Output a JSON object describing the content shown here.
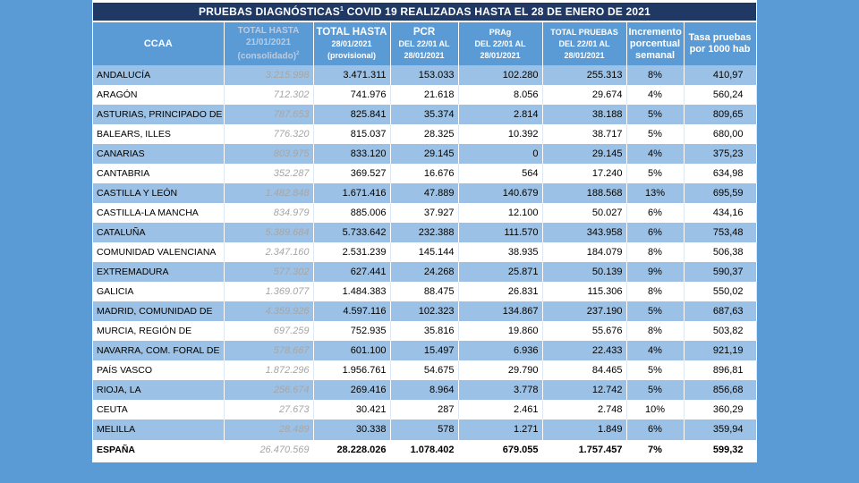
{
  "title": {
    "text_before": "PRUEBAS DIAGNÓSTICAS",
    "sup": "1",
    "text_after": " COVID 19 REALIZADAS HASTA EL 28 DE ENERO DE 2021"
  },
  "columns": {
    "ccaa": "CCAA",
    "consolidado": {
      "line1": "TOTAL HASTA",
      "line2": "21/01/2021",
      "line3": "(consolidado)",
      "sup": "2"
    },
    "total": {
      "line1": "TOTAL HASTA",
      "line2": "28/01/2021",
      "line3": "(provisional)"
    },
    "pcr": {
      "line1": "PCR",
      "line2": "DEL 22/01 AL",
      "line3": "28/01/2021"
    },
    "prag": {
      "line1": "PRAg",
      "line2": "DEL 22/01 AL",
      "line3": "28/01/2021"
    },
    "total_pruebas": {
      "line1": "TOTAL PRUEBAS",
      "line2": "DEL 22/01 AL",
      "line3": "28/01/2021"
    },
    "incremento": {
      "line1": "Incremento",
      "line2": "porcentual",
      "line3": "semanal"
    },
    "tasa": {
      "line1": "Tasa pruebas",
      "line2": "por 1000 hab"
    }
  },
  "rows": [
    [
      "ANDALUCÍA",
      "3.215.998",
      "3.471.311",
      "153.033",
      "102.280",
      "255.313",
      "8%",
      "410,97"
    ],
    [
      "ARAGÓN",
      "712.302",
      "741.976",
      "21.618",
      "8.056",
      "29.674",
      "4%",
      "560,24"
    ],
    [
      "ASTURIAS, PRINCIPADO DE",
      "787.653",
      "825.841",
      "35.374",
      "2.814",
      "38.188",
      "5%",
      "809,65"
    ],
    [
      "BALEARS, ILLES",
      "776.320",
      "815.037",
      "28.325",
      "10.392",
      "38.717",
      "5%",
      "680,00"
    ],
    [
      "CANARIAS",
      "803.975",
      "833.120",
      "29.145",
      "0",
      "29.145",
      "4%",
      "375,23"
    ],
    [
      "CANTABRIA",
      "352.287",
      "369.527",
      "16.676",
      "564",
      "17.240",
      "5%",
      "634,98"
    ],
    [
      "CASTILLA Y LEÓN",
      "1.482.848",
      "1.671.416",
      "47.889",
      "140.679",
      "188.568",
      "13%",
      "695,59"
    ],
    [
      "CASTILLA-LA MANCHA",
      "834.979",
      "885.006",
      "37.927",
      "12.100",
      "50.027",
      "6%",
      "434,16"
    ],
    [
      "CATALUÑA",
      "5.389.684",
      "5.733.642",
      "232.388",
      "111.570",
      "343.958",
      "6%",
      "753,48"
    ],
    [
      "COMUNIDAD VALENCIANA",
      "2.347.160",
      "2.531.239",
      "145.144",
      "38.935",
      "184.079",
      "8%",
      "506,38"
    ],
    [
      "EXTREMADURA",
      "577.302",
      "627.441",
      "24.268",
      "25.871",
      "50.139",
      "9%",
      "590,37"
    ],
    [
      "GALICIA",
      "1.369.077",
      "1.484.383",
      "88.475",
      "26.831",
      "115.306",
      "8%",
      "550,02"
    ],
    [
      "MADRID, COMUNIDAD DE",
      "4.359.926",
      "4.597.116",
      "102.323",
      "134.867",
      "237.190",
      "5%",
      "687,63"
    ],
    [
      "MURCIA, REGIÓN DE",
      "697.259",
      "752.935",
      "35.816",
      "19.860",
      "55.676",
      "8%",
      "503,82"
    ],
    [
      "NAVARRA, COM. FORAL DE",
      "578.667",
      "601.100",
      "15.497",
      "6.936",
      "22.433",
      "4%",
      "921,19"
    ],
    [
      "PAÍS VASCO",
      "1.872.296",
      "1.956.761",
      "54.675",
      "29.790",
      "84.465",
      "5%",
      "896,81"
    ],
    [
      "RIOJA, LA",
      "256.674",
      "269.416",
      "8.964",
      "3.778",
      "12.742",
      "5%",
      "856,68"
    ],
    [
      "CEUTA",
      "27.673",
      "30.421",
      "287",
      "2.461",
      "2.748",
      "10%",
      "360,29"
    ],
    [
      "MELILLA",
      "28.489",
      "30.338",
      "578",
      "1.271",
      "1.849",
      "6%",
      "359,94"
    ]
  ],
  "total_row": [
    "ESPAÑA",
    "26.470.569",
    "28.228.026",
    "1.078.402",
    "679.055",
    "1.757.457",
    "7%",
    "599,32"
  ],
  "colors": {
    "background": "#5b9bd5",
    "title_bar": "#1f3864",
    "header": "#5b9bd5",
    "row_band": "#9bc2e6",
    "consolidado_text": "#a6a6a6"
  }
}
